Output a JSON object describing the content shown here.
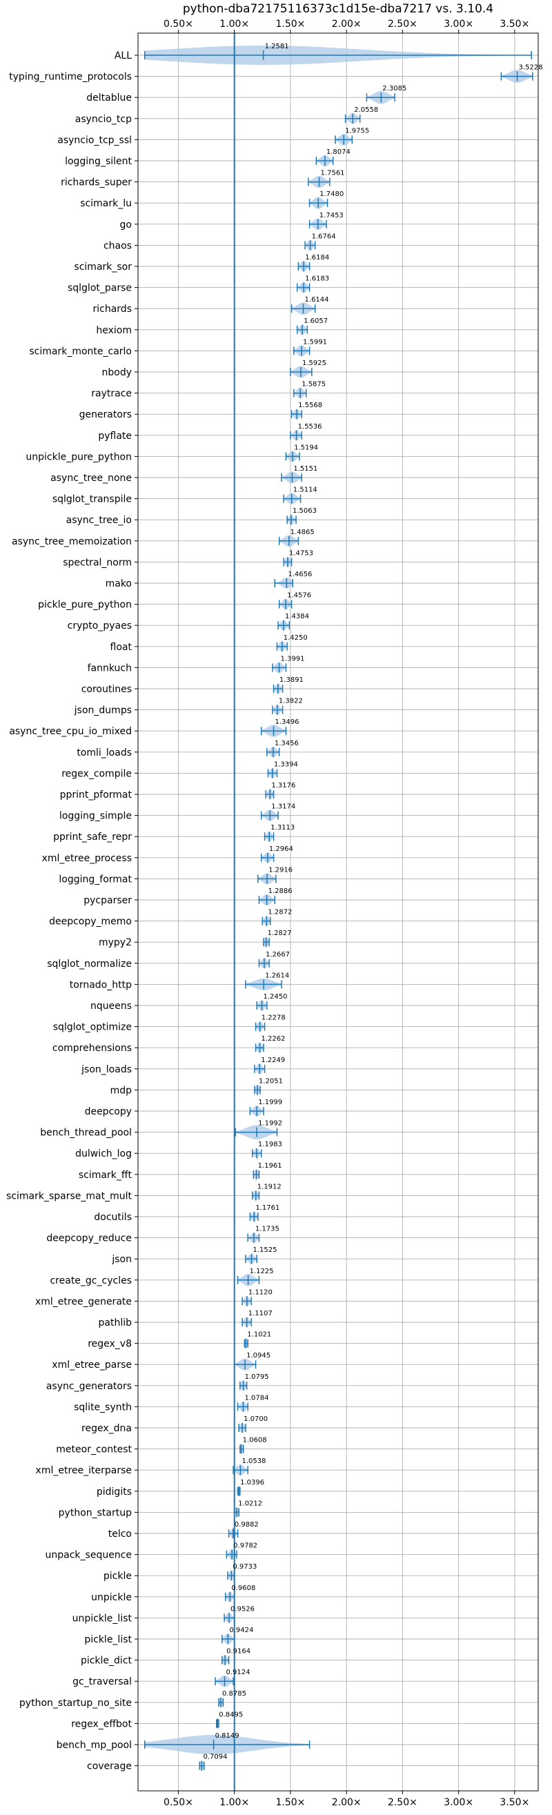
{
  "chart_data": {
    "type": "violin",
    "title": "python-dba72175116373c1d15e-dba7217 vs. 3.10.4",
    "xlabel": "",
    "ylabel": "",
    "x_tick_labels": [
      "0.50×",
      "1.00×",
      "1.50×",
      "2.00×",
      "2.50×",
      "3.00×",
      "3.50×"
    ],
    "x_ticks": [
      0.5,
      1.0,
      1.5,
      2.0,
      2.5,
      3.0,
      3.5
    ],
    "xlim": [
      0.14,
      3.71
    ],
    "reference_line": 1.0,
    "grid": true,
    "colors": {
      "line": "#1f77b4",
      "violin": "#aac8e6",
      "grid": "#b0b0b0"
    },
    "series": [
      {
        "label": "ALL",
        "value": 1.2581,
        "min": 0.2,
        "max": 3.65,
        "spread": 0.38
      },
      {
        "label": "typing_runtime_protocols",
        "value": 3.5228,
        "min": 3.38,
        "max": 3.66,
        "spread": 0.12
      },
      {
        "label": "deltablue",
        "value": 2.3085,
        "min": 2.18,
        "max": 2.43,
        "spread": 0.12
      },
      {
        "label": "asyncio_tcp",
        "value": 2.0558,
        "min": 1.99,
        "max": 2.12,
        "spread": 0.06
      },
      {
        "label": "asyncio_tcp_ssl",
        "value": 1.9755,
        "min": 1.9,
        "max": 2.05,
        "spread": 0.07
      },
      {
        "label": "logging_silent",
        "value": 1.8074,
        "min": 1.73,
        "max": 1.88,
        "spread": 0.07
      },
      {
        "label": "richards_super",
        "value": 1.7561,
        "min": 1.66,
        "max": 1.85,
        "spread": 0.09
      },
      {
        "label": "scimark_lu",
        "value": 1.748,
        "min": 1.67,
        "max": 1.83,
        "spread": 0.08
      },
      {
        "label": "go",
        "value": 1.7453,
        "min": 1.67,
        "max": 1.82,
        "spread": 0.07
      },
      {
        "label": "chaos",
        "value": 1.6764,
        "min": 1.63,
        "max": 1.72,
        "spread": 0.05
      },
      {
        "label": "scimark_sor",
        "value": 1.6184,
        "min": 1.57,
        "max": 1.67,
        "spread": 0.05
      },
      {
        "label": "sqlglot_parse",
        "value": 1.6183,
        "min": 1.56,
        "max": 1.67,
        "spread": 0.05
      },
      {
        "label": "richards",
        "value": 1.6144,
        "min": 1.51,
        "max": 1.72,
        "spread": 0.1
      },
      {
        "label": "hexiom",
        "value": 1.6057,
        "min": 1.56,
        "max": 1.65,
        "spread": 0.04
      },
      {
        "label": "scimark_monte_carlo",
        "value": 1.5991,
        "min": 1.53,
        "max": 1.67,
        "spread": 0.06
      },
      {
        "label": "nbody",
        "value": 1.5925,
        "min": 1.5,
        "max": 1.69,
        "spread": 0.08
      },
      {
        "label": "raytrace",
        "value": 1.5875,
        "min": 1.53,
        "max": 1.64,
        "spread": 0.05
      },
      {
        "label": "generators",
        "value": 1.5568,
        "min": 1.51,
        "max": 1.6,
        "spread": 0.04
      },
      {
        "label": "pyflate",
        "value": 1.5536,
        "min": 1.5,
        "max": 1.6,
        "spread": 0.05
      },
      {
        "label": "unpickle_pure_python",
        "value": 1.5194,
        "min": 1.46,
        "max": 1.58,
        "spread": 0.05
      },
      {
        "label": "async_tree_none",
        "value": 1.5151,
        "min": 1.42,
        "max": 1.6,
        "spread": 0.08
      },
      {
        "label": "sqlglot_transpile",
        "value": 1.5114,
        "min": 1.44,
        "max": 1.59,
        "spread": 0.06
      },
      {
        "label": "async_tree_io",
        "value": 1.5063,
        "min": 1.47,
        "max": 1.55,
        "spread": 0.03
      },
      {
        "label": "async_tree_memoization",
        "value": 1.4865,
        "min": 1.4,
        "max": 1.57,
        "spread": 0.07
      },
      {
        "label": "spectral_norm",
        "value": 1.4753,
        "min": 1.44,
        "max": 1.51,
        "spread": 0.03
      },
      {
        "label": "mako",
        "value": 1.4656,
        "min": 1.36,
        "max": 1.52,
        "spread": 0.05
      },
      {
        "label": "pickle_pure_python",
        "value": 1.4576,
        "min": 1.4,
        "max": 1.51,
        "spread": 0.05
      },
      {
        "label": "crypto_pyaes",
        "value": 1.4384,
        "min": 1.39,
        "max": 1.49,
        "spread": 0.04
      },
      {
        "label": "float",
        "value": 1.425,
        "min": 1.38,
        "max": 1.47,
        "spread": 0.04
      },
      {
        "label": "fannkuch",
        "value": 1.3991,
        "min": 1.34,
        "max": 1.46,
        "spread": 0.05
      },
      {
        "label": "coroutines",
        "value": 1.3891,
        "min": 1.35,
        "max": 1.43,
        "spread": 0.03
      },
      {
        "label": "json_dumps",
        "value": 1.3822,
        "min": 1.34,
        "max": 1.43,
        "spread": 0.04
      },
      {
        "label": "async_tree_cpu_io_mixed",
        "value": 1.3496,
        "min": 1.24,
        "max": 1.46,
        "spread": 0.09
      },
      {
        "label": "tomli_loads",
        "value": 1.3456,
        "min": 1.29,
        "max": 1.4,
        "spread": 0.05
      },
      {
        "label": "regex_compile",
        "value": 1.3394,
        "min": 1.3,
        "max": 1.38,
        "spread": 0.03
      },
      {
        "label": "pprint_pformat",
        "value": 1.3176,
        "min": 1.28,
        "max": 1.35,
        "spread": 0.03
      },
      {
        "label": "logging_simple",
        "value": 1.3174,
        "min": 1.24,
        "max": 1.39,
        "spread": 0.06
      },
      {
        "label": "pprint_safe_repr",
        "value": 1.3113,
        "min": 1.27,
        "max": 1.35,
        "spread": 0.03
      },
      {
        "label": "xml_etree_process",
        "value": 1.2964,
        "min": 1.24,
        "max": 1.35,
        "spread": 0.04
      },
      {
        "label": "logging_format",
        "value": 1.2916,
        "min": 1.21,
        "max": 1.37,
        "spread": 0.06
      },
      {
        "label": "pycparser",
        "value": 1.2886,
        "min": 1.22,
        "max": 1.36,
        "spread": 0.06
      },
      {
        "label": "deepcopy_memo",
        "value": 1.2872,
        "min": 1.25,
        "max": 1.32,
        "spread": 0.03
      },
      {
        "label": "mypy2",
        "value": 1.2827,
        "min": 1.26,
        "max": 1.31,
        "spread": 0.02
      },
      {
        "label": "sqlglot_normalize",
        "value": 1.2667,
        "min": 1.22,
        "max": 1.31,
        "spread": 0.04
      },
      {
        "label": "tornado_http",
        "value": 1.2614,
        "min": 1.1,
        "max": 1.42,
        "spread": 0.08
      },
      {
        "label": "nqueens",
        "value": 1.245,
        "min": 1.2,
        "max": 1.29,
        "spread": 0.04
      },
      {
        "label": "sqlglot_optimize",
        "value": 1.2278,
        "min": 1.19,
        "max": 1.27,
        "spread": 0.03
      },
      {
        "label": "comprehensions",
        "value": 1.2262,
        "min": 1.19,
        "max": 1.26,
        "spread": 0.03
      },
      {
        "label": "json_loads",
        "value": 1.2249,
        "min": 1.18,
        "max": 1.27,
        "spread": 0.04
      },
      {
        "label": "mdp",
        "value": 1.2051,
        "min": 1.18,
        "max": 1.23,
        "spread": 0.02
      },
      {
        "label": "deepcopy",
        "value": 1.1999,
        "min": 1.14,
        "max": 1.26,
        "spread": 0.05
      },
      {
        "label": "bench_thread_pool",
        "value": 1.1992,
        "min": 1.01,
        "max": 1.38,
        "spread": 0.17
      },
      {
        "label": "dulwich_log",
        "value": 1.1983,
        "min": 1.16,
        "max": 1.24,
        "spread": 0.03
      },
      {
        "label": "scimark_fft",
        "value": 1.1961,
        "min": 1.17,
        "max": 1.22,
        "spread": 0.02
      },
      {
        "label": "scimark_sparse_mat_mult",
        "value": 1.1912,
        "min": 1.16,
        "max": 1.22,
        "spread": 0.02
      },
      {
        "label": "docutils",
        "value": 1.1761,
        "min": 1.14,
        "max": 1.21,
        "spread": 0.03
      },
      {
        "label": "deepcopy_reduce",
        "value": 1.1735,
        "min": 1.12,
        "max": 1.22,
        "spread": 0.04
      },
      {
        "label": "json",
        "value": 1.1525,
        "min": 1.1,
        "max": 1.2,
        "spread": 0.04
      },
      {
        "label": "create_gc_cycles",
        "value": 1.1225,
        "min": 1.03,
        "max": 1.22,
        "spread": 0.1
      },
      {
        "label": "xml_etree_generate",
        "value": 1.112,
        "min": 1.07,
        "max": 1.15,
        "spread": 0.03
      },
      {
        "label": "pathlib",
        "value": 1.1107,
        "min": 1.07,
        "max": 1.15,
        "spread": 0.03
      },
      {
        "label": "regex_v8",
        "value": 1.1021,
        "min": 1.09,
        "max": 1.12,
        "spread": 0.01
      },
      {
        "label": "xml_etree_parse",
        "value": 1.0945,
        "min": 1.0,
        "max": 1.19,
        "spread": 0.08
      },
      {
        "label": "async_generators",
        "value": 1.0795,
        "min": 1.05,
        "max": 1.11,
        "spread": 0.03
      },
      {
        "label": "sqlite_synth",
        "value": 1.0784,
        "min": 1.03,
        "max": 1.12,
        "spread": 0.04
      },
      {
        "label": "regex_dna",
        "value": 1.07,
        "min": 1.04,
        "max": 1.1,
        "spread": 0.03
      },
      {
        "label": "meteor_contest",
        "value": 1.0608,
        "min": 1.05,
        "max": 1.08,
        "spread": 0.01
      },
      {
        "label": "xml_etree_iterparse",
        "value": 1.0538,
        "min": 0.99,
        "max": 1.12,
        "spread": 0.06
      },
      {
        "label": "pidigits",
        "value": 1.0396,
        "min": 1.03,
        "max": 1.05,
        "spread": 0.01
      },
      {
        "label": "python_startup",
        "value": 1.0212,
        "min": 1.0,
        "max": 1.04,
        "spread": 0.02
      },
      {
        "label": "telco",
        "value": 0.9882,
        "min": 0.95,
        "max": 1.03,
        "spread": 0.03
      },
      {
        "label": "unpack_sequence",
        "value": 0.9782,
        "min": 0.93,
        "max": 1.02,
        "spread": 0.04
      },
      {
        "label": "pickle",
        "value": 0.9733,
        "min": 0.94,
        "max": 1.0,
        "spread": 0.03
      },
      {
        "label": "unpickle",
        "value": 0.9608,
        "min": 0.92,
        "max": 1.0,
        "spread": 0.03
      },
      {
        "label": "unpickle_list",
        "value": 0.9526,
        "min": 0.91,
        "max": 1.0,
        "spread": 0.04
      },
      {
        "label": "pickle_list",
        "value": 0.9424,
        "min": 0.89,
        "max": 1.0,
        "spread": 0.05
      },
      {
        "label": "pickle_dict",
        "value": 0.9164,
        "min": 0.89,
        "max": 0.95,
        "spread": 0.03
      },
      {
        "label": "gc_traversal",
        "value": 0.9124,
        "min": 0.83,
        "max": 0.99,
        "spread": 0.07
      },
      {
        "label": "python_startup_no_site",
        "value": 0.8785,
        "min": 0.86,
        "max": 0.9,
        "spread": 0.02
      },
      {
        "label": "regex_effbot",
        "value": 0.8495,
        "min": 0.84,
        "max": 0.86,
        "spread": 0.01
      },
      {
        "label": "bench_mp_pool",
        "value": 0.8149,
        "min": 0.2,
        "max": 1.67,
        "spread": 0.4
      },
      {
        "label": "coverage",
        "value": 0.7094,
        "min": 0.69,
        "max": 0.73,
        "spread": 0.02
      }
    ]
  }
}
